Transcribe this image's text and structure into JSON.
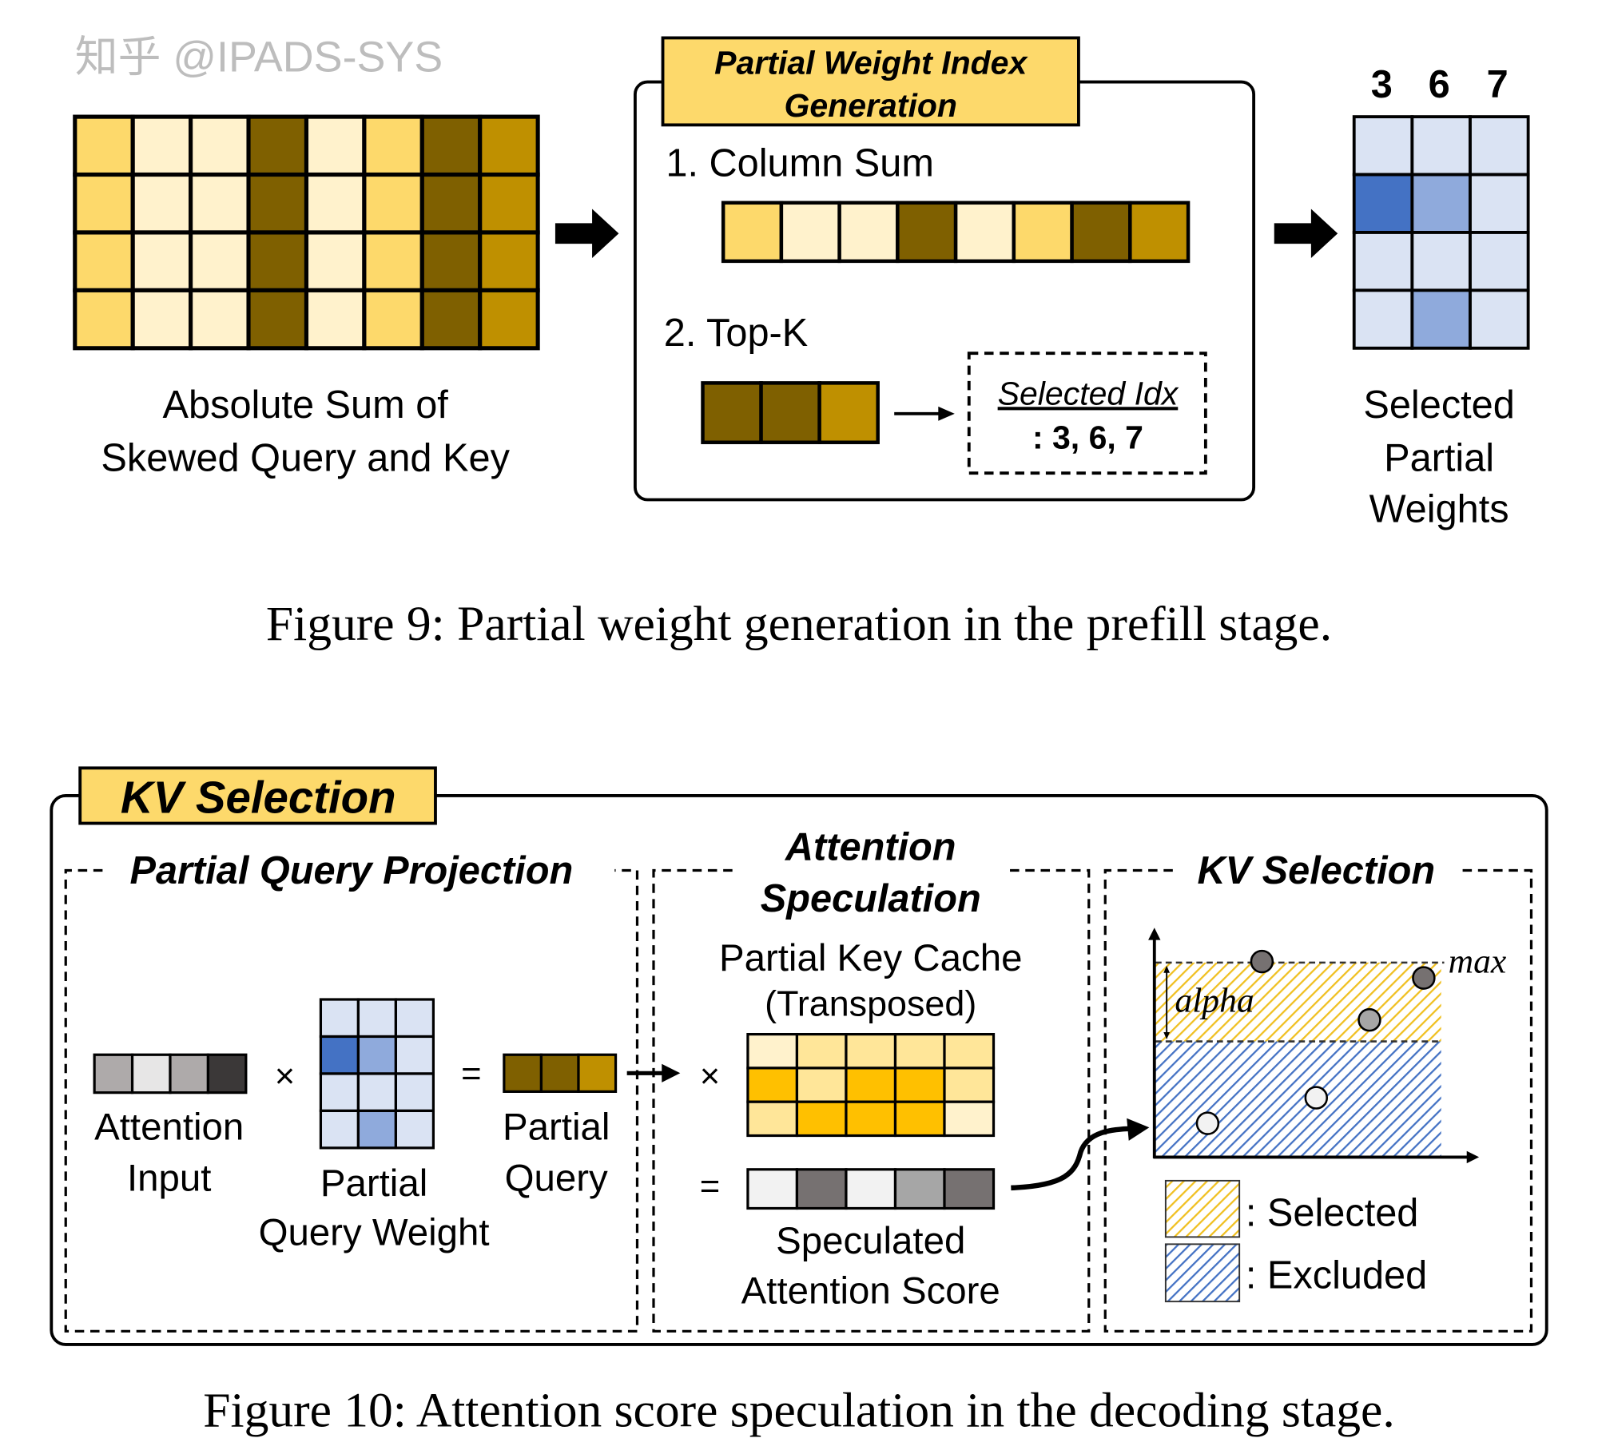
{
  "figure9": {
    "source_grid": {
      "label_lines": [
        "Absolute Sum of",
        "Skewed Query and Key"
      ],
      "column_colors": [
        "#fdd96b",
        "#fff2cc",
        "#fff2cc",
        "#7f6000",
        "#fff2cc",
        "#fdd96b",
        "#7f6000",
        "#bf9000"
      ],
      "rows": 4
    },
    "index_box": {
      "title_lines": [
        "Partial Weight Index",
        "Generation"
      ],
      "step1": "1. Column Sum",
      "step2": "2. Top-K",
      "topk_colors": [
        "#7f6000",
        "#7f6000",
        "#bf9000"
      ],
      "selected_idx_label": "Selected Idx",
      "selected_idx_values": ": 3, 6, 7"
    },
    "selected_weights": {
      "column_labels": [
        "3",
        "6",
        "7"
      ],
      "cells": [
        [
          "#dae3f3",
          "#dae3f3",
          "#dae3f3"
        ],
        [
          "#4472c4",
          "#8faadc",
          "#dae3f3"
        ],
        [
          "#dae3f3",
          "#dae3f3",
          "#dae3f3"
        ],
        [
          "#dae3f3",
          "#8faadc",
          "#dae3f3"
        ]
      ],
      "label_lines": [
        "Selected",
        "Partial",
        "Weights"
      ]
    },
    "caption": "Figure 9: Partial weight generation in the prefill stage."
  },
  "figure10": {
    "title": "KV Selection",
    "panel1": {
      "title": "Partial Query Projection",
      "attention_input_colors": [
        "#aeaaaa",
        "#e7e6e6",
        "#aeaaaa",
        "#3b3838"
      ],
      "attention_input_label": [
        "Attention",
        "Input"
      ],
      "times": "×",
      "weight_cells": [
        [
          "#dae3f3",
          "#dae3f3",
          "#dae3f3"
        ],
        [
          "#4472c4",
          "#8faadc",
          "#dae3f3"
        ],
        [
          "#dae3f3",
          "#dae3f3",
          "#dae3f3"
        ],
        [
          "#dae3f3",
          "#8faadc",
          "#dae3f3"
        ]
      ],
      "weight_label": [
        "Partial",
        "Query Weight"
      ],
      "equals": "=",
      "partial_query_colors": [
        "#7f6000",
        "#7f6000",
        "#bf9000"
      ],
      "partial_query_label": [
        "Partial",
        "Query"
      ]
    },
    "panel2": {
      "title_lines": [
        "Attention",
        "Speculation"
      ],
      "key_cache_label": [
        "Partial Key Cache",
        "(Transposed)"
      ],
      "times": "×",
      "key_cache_cells": [
        [
          "#fff2cc",
          "#ffe699",
          "#ffe699",
          "#ffe699",
          "#ffe699"
        ],
        [
          "#ffc000",
          "#ffe699",
          "#ffc000",
          "#ffc000",
          "#ffe699"
        ],
        [
          "#ffe699",
          "#ffc000",
          "#ffc000",
          "#ffc000",
          "#fff2cc"
        ]
      ],
      "equals": "=",
      "score_colors": [
        "#f2f2f2",
        "#767171",
        "#f2f2f2",
        "#a6a6a6",
        "#767171"
      ],
      "score_label": [
        "Speculated",
        "Attention Score"
      ]
    },
    "panel3": {
      "title": "KV Selection",
      "max_label": "max",
      "alpha_label": "alpha",
      "points": [
        {
          "color": "#767171"
        },
        {
          "color": "#767171"
        },
        {
          "color": "#a6a6a6"
        },
        {
          "color": "#f2f2f2"
        },
        {
          "color": "#f2f2f2"
        }
      ],
      "legend": [
        {
          "label": ": Selected",
          "color": "#f4c430"
        },
        {
          "label": ": Excluded",
          "color": "#4472c4"
        }
      ]
    },
    "caption": "Figure 10: Attention score speculation in the decoding stage."
  },
  "watermark": "知乎 @IPADS-SYS",
  "colors": {
    "title_box": "#fdd96b",
    "blue_dark": "#4472c4"
  }
}
